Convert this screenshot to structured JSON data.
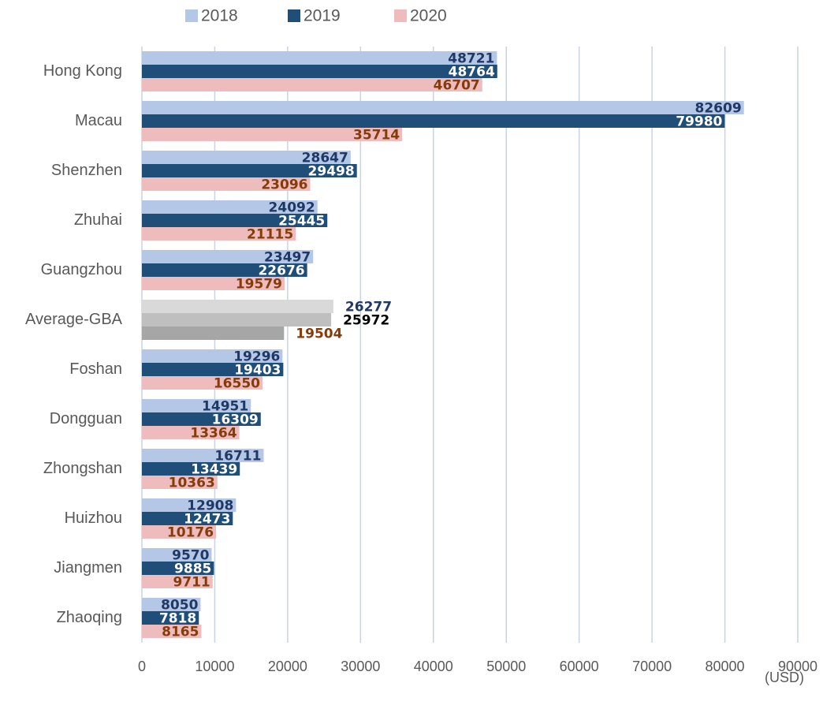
{
  "chart_data": {
    "type": "barh",
    "x_label": "(USD)",
    "categories": [
      "Hong Kong",
      "Macau",
      "Shenzhen",
      "Zhuhai",
      "Guangzhou",
      "Average-GBA",
      "Foshan",
      "Dongguan",
      "Zhongshan",
      "Huizhou",
      "Jiangmen",
      "Zhaoqing"
    ],
    "series": [
      {
        "name": "2018",
        "color": "#b4c7e7",
        "label_color": "#1f3864",
        "values": [
          48721,
          82609,
          28647,
          24092,
          23497,
          26277,
          19296,
          14951,
          16711,
          12908,
          9570,
          8050
        ]
      },
      {
        "name": "2019",
        "color": "#1f4e79",
        "label_color": "#ffffff",
        "values": [
          48764,
          79980,
          29498,
          25445,
          22676,
          25972,
          19403,
          16309,
          13439,
          12473,
          9885,
          7818
        ]
      },
      {
        "name": "2020",
        "color": "#eebcbc",
        "label_color": "#843c0c",
        "values": [
          46707,
          35714,
          23096,
          21115,
          19579,
          19504,
          16550,
          13364,
          10363,
          10176,
          9711,
          8165
        ]
      }
    ],
    "highlight": {
      "category": "Average-GBA",
      "colors": [
        "#d9d9d9",
        "#bfbfbf",
        "#a6a6a6"
      ],
      "label_colors": [
        "#1f3864",
        "#000000",
        "#843c0c"
      ]
    },
    "xlim": [
      0,
      90000
    ],
    "xticks": [
      0,
      10000,
      20000,
      30000,
      40000,
      50000,
      60000,
      70000,
      80000,
      90000
    ],
    "grid": true,
    "legend": "top"
  }
}
